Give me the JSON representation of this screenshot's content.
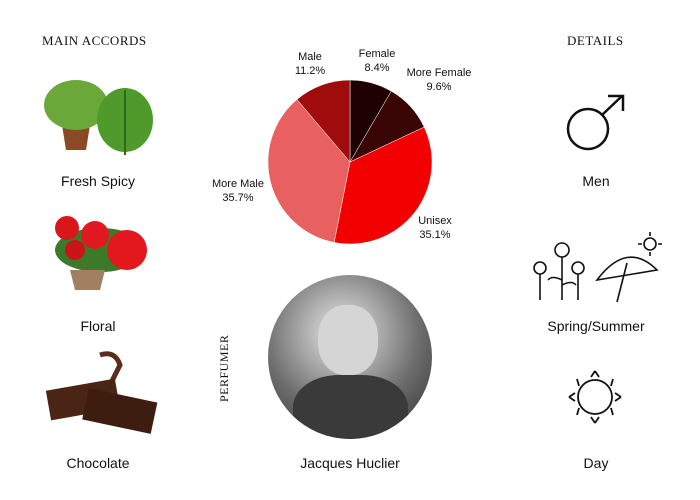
{
  "headings": {
    "accords": "MAIN ACCORDS",
    "details": "DETAILS",
    "perfumer": "PERFUMER"
  },
  "accords": [
    {
      "label": "Fresh Spicy",
      "icon": "mint-plant-image"
    },
    {
      "label": "Floral",
      "icon": "geranium-image"
    },
    {
      "label": "Chocolate",
      "icon": "chocolate-image"
    }
  ],
  "details": [
    {
      "label": "Men",
      "icon": "male-symbol-icon"
    },
    {
      "label": "Spring/Summer",
      "icon": "flowers-umbrella-icon"
    },
    {
      "label": "Day",
      "icon": "sun-icon"
    }
  ],
  "perfumer": {
    "name": "Jacques Huclier"
  },
  "chart_data": {
    "type": "pie",
    "slices": [
      {
        "label": "Female",
        "value": 8.4,
        "display": "8.4%",
        "color": "#1e0000"
      },
      {
        "label": "More Female",
        "value": 9.6,
        "display": "9.6%",
        "color": "#3a0505"
      },
      {
        "label": "Unisex",
        "value": 35.1,
        "display": "35.1%",
        "color": "#f20000"
      },
      {
        "label": "More Male",
        "value": 35.7,
        "display": "35.7%",
        "color": "#e86060"
      },
      {
        "label": "Male",
        "value": 11.2,
        "display": "11.2%",
        "color": "#a00c0c"
      }
    ]
  }
}
